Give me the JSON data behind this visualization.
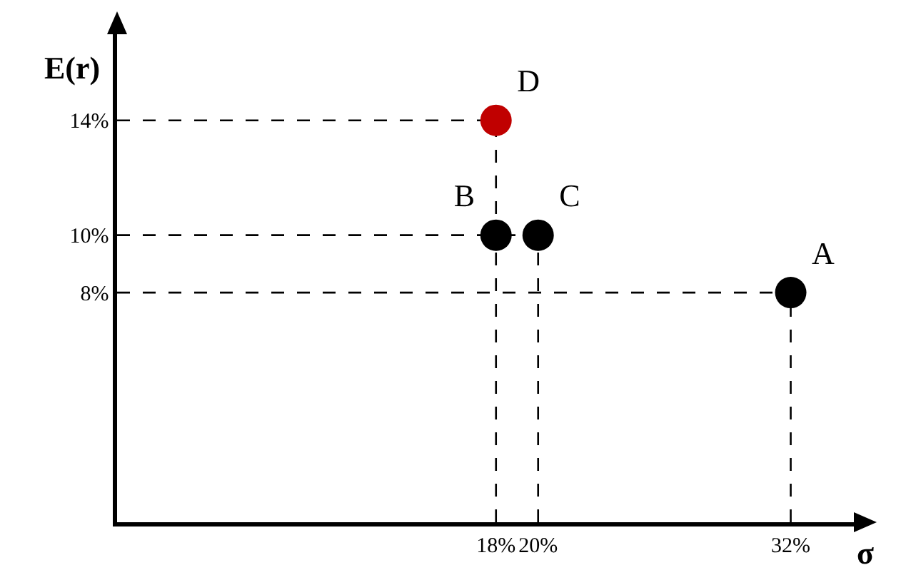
{
  "chart_data": {
    "type": "scatter",
    "xlabel": "σ",
    "ylabel": "E(r)",
    "xlim": [
      0,
      35
    ],
    "ylim": [
      0,
      17
    ],
    "xticks": [
      {
        "value": 18,
        "label": "18%"
      },
      {
        "value": 20,
        "label": "20%"
      },
      {
        "value": 32,
        "label": "32%"
      }
    ],
    "yticks": [
      {
        "value": 8,
        "label": "8%"
      },
      {
        "value": 10,
        "label": "10%"
      },
      {
        "value": 14,
        "label": "14%"
      }
    ],
    "series": [
      {
        "name": "A",
        "color": "#000000",
        "x": [
          32
        ],
        "values": [
          8
        ]
      },
      {
        "name": "B",
        "color": "#000000",
        "x": [
          18
        ],
        "values": [
          10
        ]
      },
      {
        "name": "C",
        "color": "#000000",
        "x": [
          20
        ],
        "values": [
          10
        ]
      },
      {
        "name": "D",
        "color": "#c00000",
        "x": [
          18
        ],
        "values": [
          14
        ]
      }
    ],
    "marker": "circle",
    "grid": false,
    "legend": false,
    "ref_lines": [
      {
        "axis": "x",
        "value": 18,
        "line_style": "dashed",
        "color": "#000000"
      },
      {
        "axis": "x",
        "value": 20,
        "line_style": "dashed",
        "color": "#000000"
      },
      {
        "axis": "x",
        "value": 32,
        "line_style": "dashed",
        "color": "#000000"
      },
      {
        "axis": "y",
        "value": 14,
        "line_style": "dashed",
        "color": "#000000"
      },
      {
        "axis": "y",
        "value": 10,
        "line_style": "dashed",
        "color": "#000000"
      },
      {
        "axis": "y",
        "value": 8,
        "line_style": "dashed",
        "color": "#000000"
      }
    ]
  }
}
